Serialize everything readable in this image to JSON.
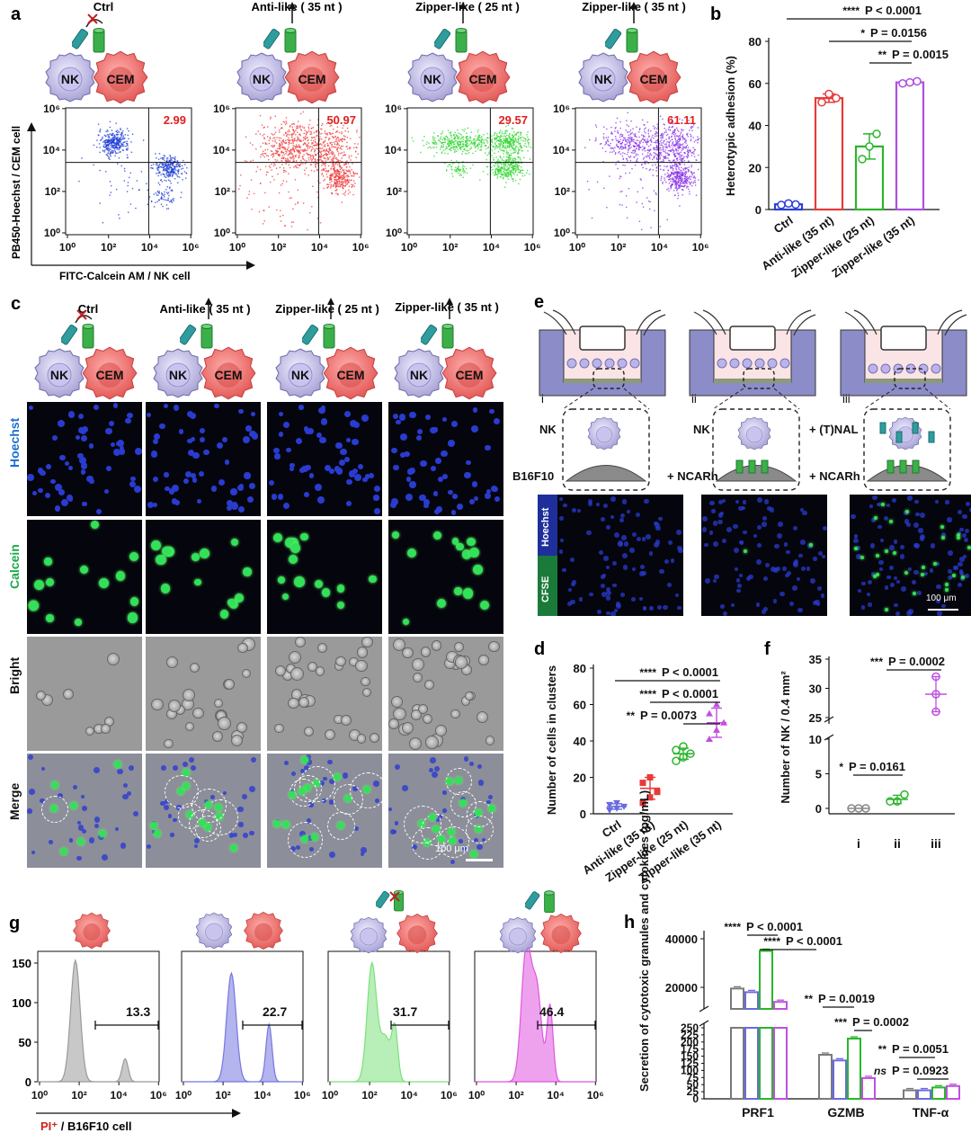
{
  "panel_letters": {
    "a": "a",
    "b": "b",
    "c": "c",
    "d": "d",
    "e": "e",
    "f": "f",
    "g": "g",
    "h": "h"
  },
  "conditions": [
    "Ctrl",
    "Anti-like ( 35 nt )",
    "Zipper-like ( 25 nt )",
    "Zipper-like ( 35 nt )"
  ],
  "cell_labels": {
    "nk": "NK",
    "cem": "CEM"
  },
  "panel_a": {
    "ylabel": "PB450-Hoechst / CEM cell",
    "xlabel": "FITC-Calcein AM / NK cell",
    "ticks": [
      "10⁰",
      "10²",
      "10⁴",
      "10⁶"
    ],
    "quadrant_values": [
      "2.99",
      "50.97",
      "29.57",
      "61.11"
    ],
    "colors": [
      "#1f3fd6",
      "#f03c3c",
      "#32d632",
      "#8a35e6"
    ]
  },
  "panel_c": {
    "rows": [
      "Hoechst",
      "Calcein",
      "Bright",
      "Merge"
    ],
    "scale_bar": "100 μm"
  },
  "panel_e": {
    "roman": [
      "i",
      "ii",
      "iii"
    ],
    "nk": "NK",
    "b16": "B16F10",
    "ncarh": "+ NCARh",
    "tnal": "+ (T)NAL",
    "stain_labels": [
      "Hoechst",
      "CFSE"
    ],
    "scale_bar": "100 μm"
  },
  "panel_g": {
    "xlabel_pi": "PI⁺",
    "xlabel_rest": " / B16F10 cell",
    "values": [
      "13.3",
      "22.7",
      "31.7",
      "46.4"
    ],
    "colors": [
      "#9a9a9a",
      "#7777e0",
      "#7de07d",
      "#e055e0"
    ]
  },
  "chart_data": [
    {
      "id": "b",
      "type": "bar",
      "categories": [
        "Ctrl",
        "Anti-like (35 nt)",
        "Zipper-like (25 nt)",
        "Zipper-like (35 nt)"
      ],
      "values": [
        2.5,
        53,
        30,
        60.5
      ],
      "points": [
        [
          2.2,
          2.9,
          2.4
        ],
        [
          51,
          55,
          53
        ],
        [
          24,
          30,
          36
        ],
        [
          60,
          60.5,
          61
        ]
      ],
      "error": [
        0.5,
        2,
        6,
        0.5
      ],
      "colors": [
        "#2d3fd6",
        "#e83a3a",
        "#2bb52b",
        "#b04ee0"
      ],
      "ylabel": "Heterotypic adhesion (%)",
      "ylim": [
        0,
        80
      ],
      "yticks": [
        "0",
        "20",
        "40",
        "60",
        "80"
      ],
      "annotations": [
        {
          "stars": "****",
          "text": "P < 0.0001",
          "from": 0,
          "to": 3
        },
        {
          "stars": "*",
          "text": "P = 0.0156",
          "from": 1,
          "to": 3
        },
        {
          "stars": "**",
          "text": "P = 0.0015",
          "from": 2,
          "to": 3
        }
      ]
    },
    {
      "id": "d",
      "type": "scatter",
      "categories": [
        "Ctrl",
        "Anti-like (35 nt)",
        "Zipper-like (25 nt)",
        "Zipper-like (35 nt)"
      ],
      "points": [
        [
          2,
          3,
          4,
          5,
          6
        ],
        [
          6,
          9,
          12,
          17,
          20
        ],
        [
          29,
          31,
          33,
          35,
          37
        ],
        [
          41,
          46,
          50,
          55,
          60
        ]
      ],
      "means": [
        4,
        14,
        33,
        50
      ],
      "sd": [
        1.5,
        6,
        3,
        8
      ],
      "colors": [
        "#6a6ae0",
        "#e83a3a",
        "#2bb52b",
        "#c050e0"
      ],
      "ylabel": "Number of cells in clusters",
      "ylim": [
        0,
        80
      ],
      "yticks": [
        "0",
        "20",
        "40",
        "60",
        "80"
      ],
      "annotations": [
        {
          "stars": "****",
          "text": "P < 0.0001",
          "from": 0,
          "to": 3
        },
        {
          "stars": "****",
          "text": "P < 0.0001",
          "from": 1,
          "to": 3
        },
        {
          "stars": "**",
          "text": "P = 0.0073",
          "from": 2,
          "to": 3
        }
      ]
    },
    {
      "id": "f",
      "type": "scatter",
      "categories": [
        "i",
        "ii",
        "iii"
      ],
      "points": [
        [
          0,
          0,
          0
        ],
        [
          1,
          1,
          2
        ],
        [
          26,
          29,
          32
        ]
      ],
      "means": [
        0,
        1.3,
        29
      ],
      "sd": [
        0,
        0.6,
        3
      ],
      "colors": [
        "#888888",
        "#2bb52b",
        "#c050e0"
      ],
      "ylabel": "Number of NK / 0.4 mm²",
      "yticks_low": [
        "0",
        "5",
        "10"
      ],
      "yticks_high": [
        "25",
        "30",
        "35"
      ],
      "annotations": [
        {
          "stars": "***",
          "text": "P = 0.0002",
          "from": 1,
          "to": 2
        },
        {
          "stars": "*",
          "text": "P = 0.0161",
          "from": 0,
          "to": 1
        }
      ]
    },
    {
      "id": "h",
      "type": "bar",
      "categories": [
        "PRF1",
        "GZMB",
        "TNF-α"
      ],
      "series": [
        {
          "name": "g1",
          "color": "#7a7a7a",
          "values": [
            19500,
            155,
            30
          ]
        },
        {
          "name": "g2",
          "color": "#6a6ae0",
          "values": [
            18000,
            135,
            30
          ]
        },
        {
          "name": "g3",
          "color": "#2bb52b",
          "values": [
            35000,
            212,
            40
          ]
        },
        {
          "name": "g4",
          "color": "#c050e0",
          "values": [
            14000,
            73,
            45
          ]
        }
      ],
      "ylabel": "Secretion of cytotoxic granules and cytokines (pg/mL)",
      "yticks_low": [
        "0",
        "25",
        "50",
        "75",
        "100",
        "125",
        "150",
        "175",
        "200",
        "225",
        "250"
      ],
      "yticks_high": [
        "20000",
        "40000"
      ],
      "annotations": [
        {
          "stars": "****",
          "text": "P < 0.0001"
        },
        {
          "stars": "****",
          "text": "P < 0.0001"
        },
        {
          "stars": "**",
          "text": "P = 0.0019"
        },
        {
          "stars": "***",
          "text": "P = 0.0002"
        },
        {
          "stars": "**",
          "text": "P = 0.0051"
        },
        {
          "stars": "ns",
          "text": "P = 0.0923"
        }
      ]
    }
  ]
}
